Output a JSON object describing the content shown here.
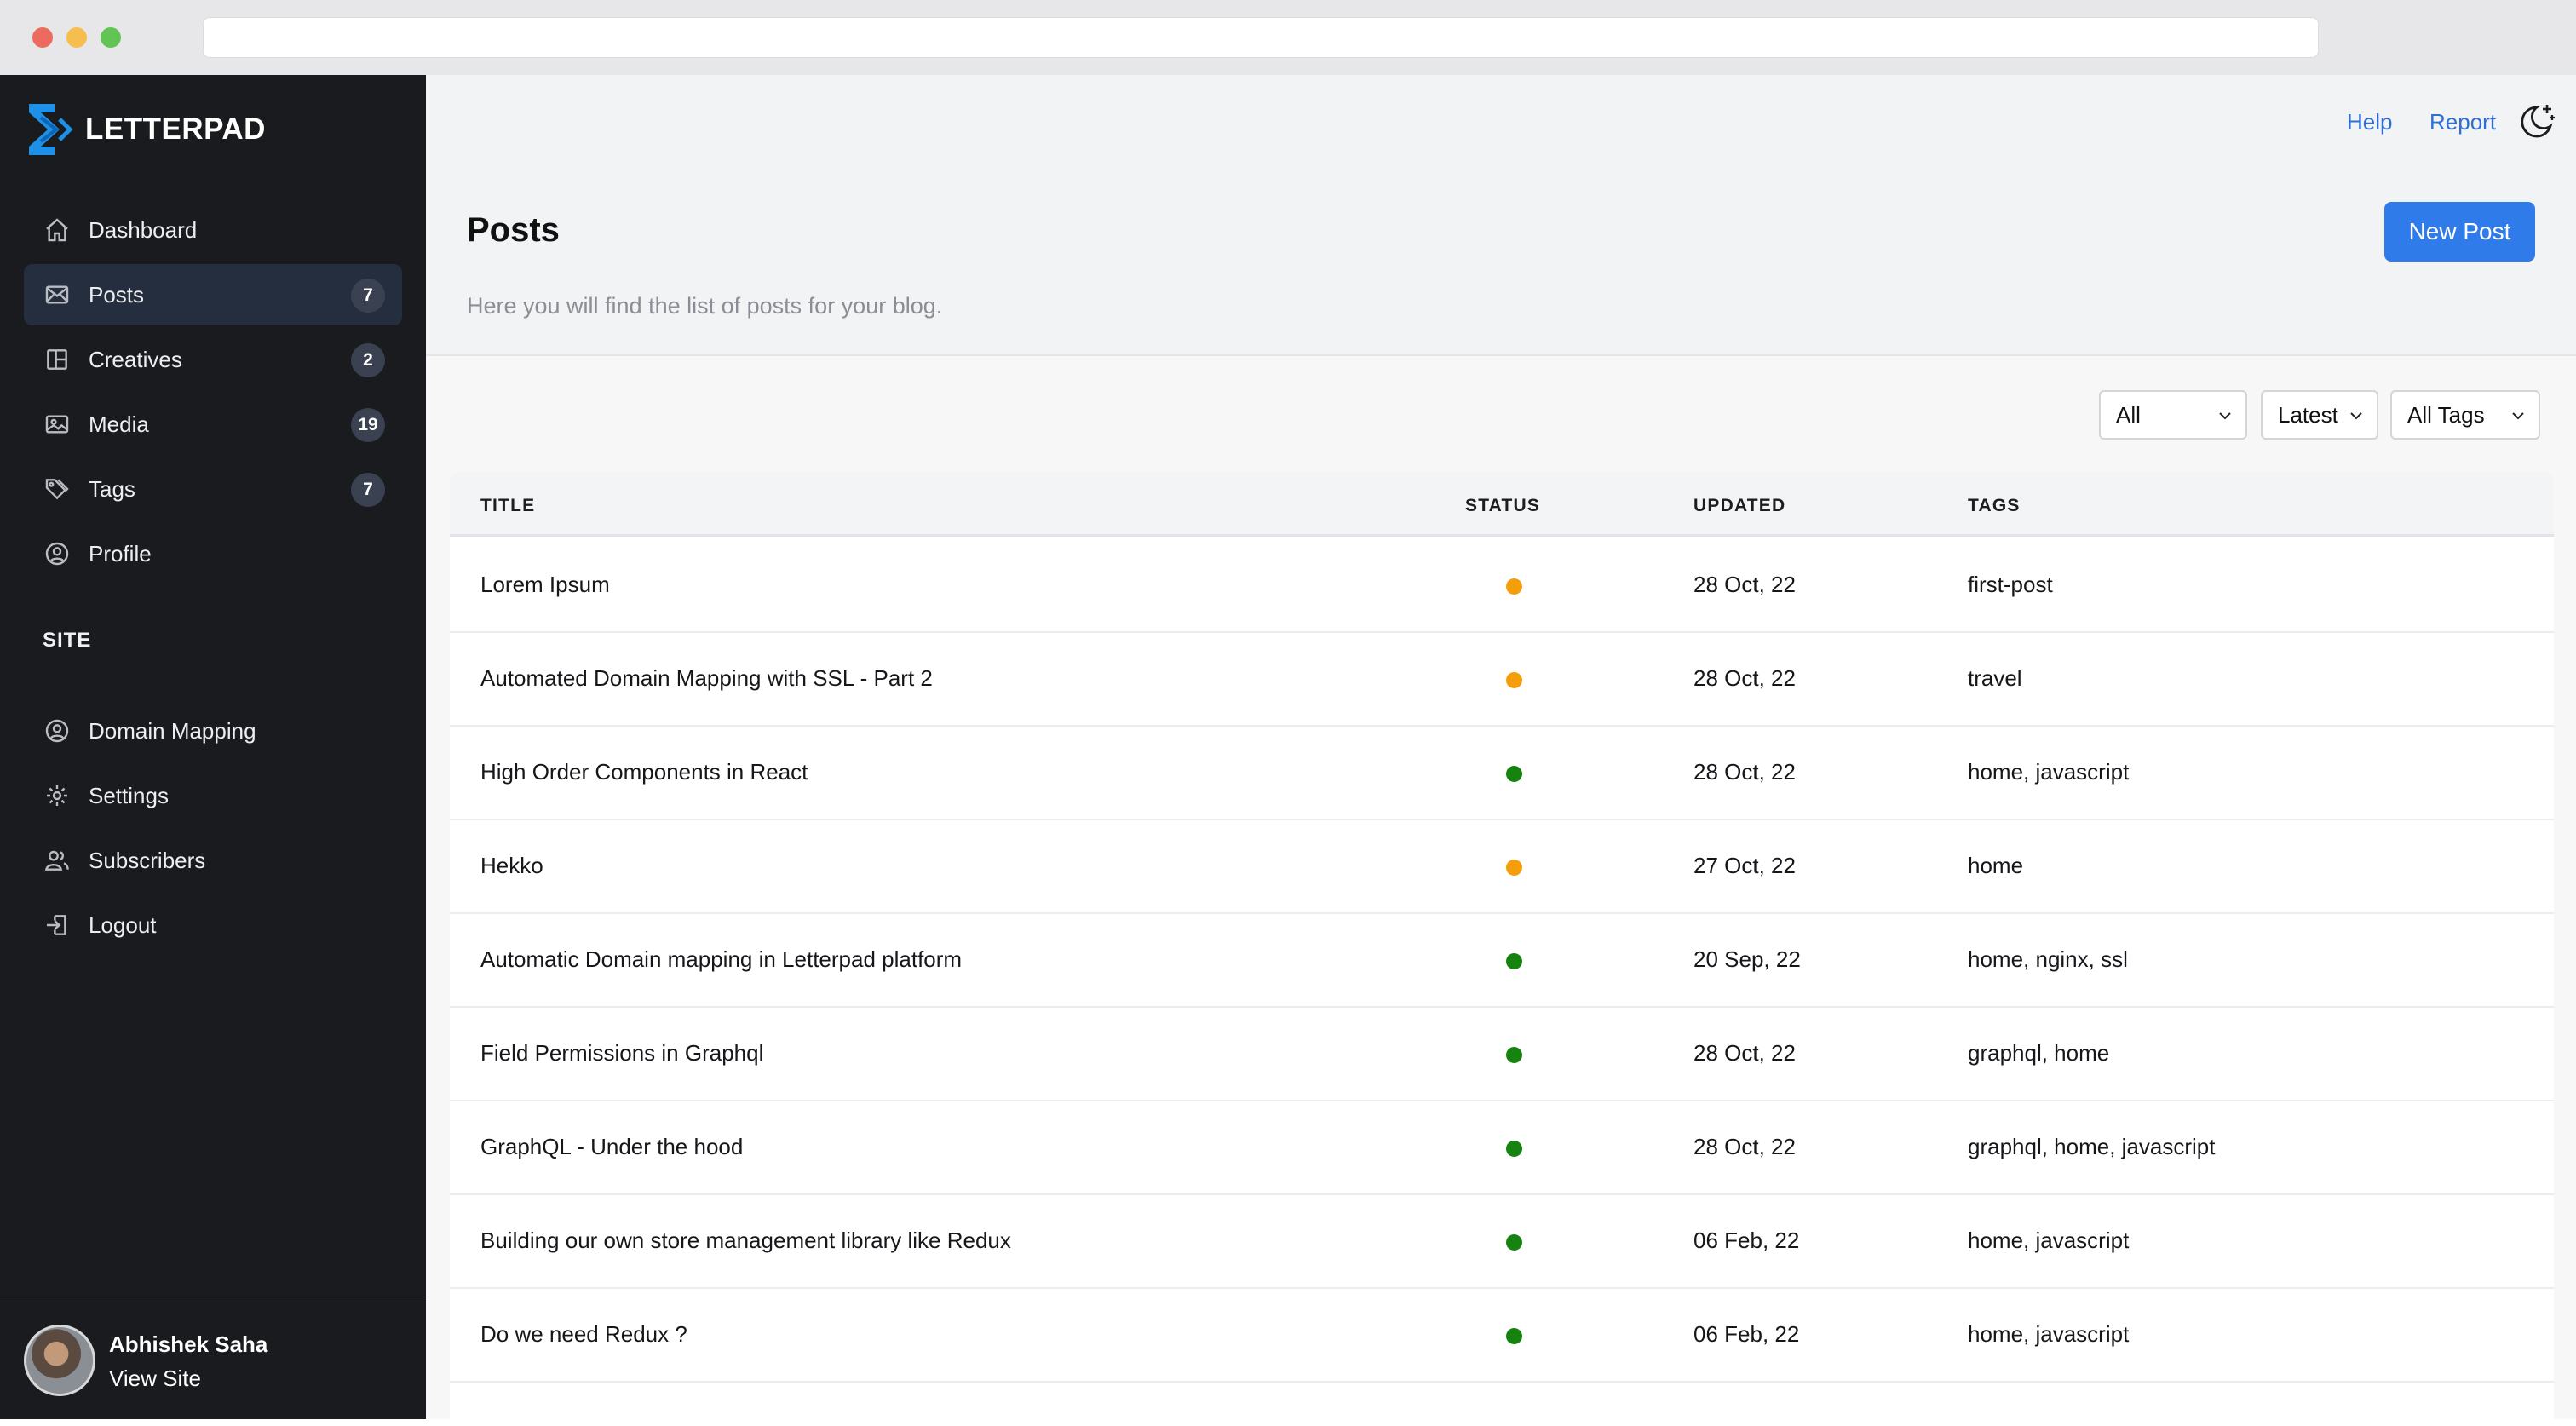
{
  "app": {
    "logo_text": "LETTERPAD"
  },
  "sidebar": {
    "items": [
      {
        "label": "Dashboard",
        "icon": "home-icon"
      },
      {
        "label": "Posts",
        "icon": "mail-icon",
        "badge": "7",
        "active": true
      },
      {
        "label": "Creatives",
        "icon": "layout-icon",
        "badge": "2"
      },
      {
        "label": "Media",
        "icon": "image-icon",
        "badge": "19"
      },
      {
        "label": "Tags",
        "icon": "tag-icon",
        "badge": "7"
      },
      {
        "label": "Profile",
        "icon": "user-circle-icon"
      }
    ],
    "section_label": "SITE",
    "site_items": [
      {
        "label": "Domain Mapping",
        "icon": "user-circle-icon"
      },
      {
        "label": "Settings",
        "icon": "gear-icon"
      },
      {
        "label": "Subscribers",
        "icon": "users-icon"
      },
      {
        "label": "Logout",
        "icon": "logout-icon"
      }
    ],
    "profile": {
      "name": "Abhishek Saha",
      "link": "View Site"
    }
  },
  "header": {
    "help": "Help",
    "report": "Report",
    "theme_icon": "moon-stars-icon",
    "title": "Posts",
    "subtitle": "Here you will find the list of posts for your blog.",
    "new_post": "New Post"
  },
  "filters": {
    "status": "All",
    "sort": "Latest",
    "tags": "All Tags"
  },
  "table": {
    "columns": [
      "TITLE",
      "STATUS",
      "UPDATED",
      "TAGS"
    ],
    "status_colors": {
      "draft": "#f59e0b",
      "published": "#16820f"
    },
    "rows": [
      {
        "title": "Lorem Ipsum",
        "status": "draft",
        "updated": "28 Oct, 22",
        "tags": "first-post"
      },
      {
        "title": "Automated Domain Mapping with SSL - Part 2",
        "status": "draft",
        "updated": "28 Oct, 22",
        "tags": "travel"
      },
      {
        "title": "High Order Components in React",
        "status": "published",
        "updated": "28 Oct, 22",
        "tags": "home, javascript"
      },
      {
        "title": "Hekko",
        "status": "draft",
        "updated": "27 Oct, 22",
        "tags": "home"
      },
      {
        "title": "Automatic Domain mapping in Letterpad platform",
        "status": "published",
        "updated": "20 Sep, 22",
        "tags": "home, nginx, ssl"
      },
      {
        "title": "Field Permissions in Graphql",
        "status": "published",
        "updated": "28 Oct, 22",
        "tags": "graphql, home"
      },
      {
        "title": "GraphQL - Under the hood",
        "status": "published",
        "updated": "28 Oct, 22",
        "tags": "graphql, home, javascript"
      },
      {
        "title": "Building our own store management library like Redux",
        "status": "published",
        "updated": "06 Feb, 22",
        "tags": "home, javascript"
      },
      {
        "title": "Do we need Redux ?",
        "status": "published",
        "updated": "06 Feb, 22",
        "tags": "home, javascript"
      }
    ]
  }
}
